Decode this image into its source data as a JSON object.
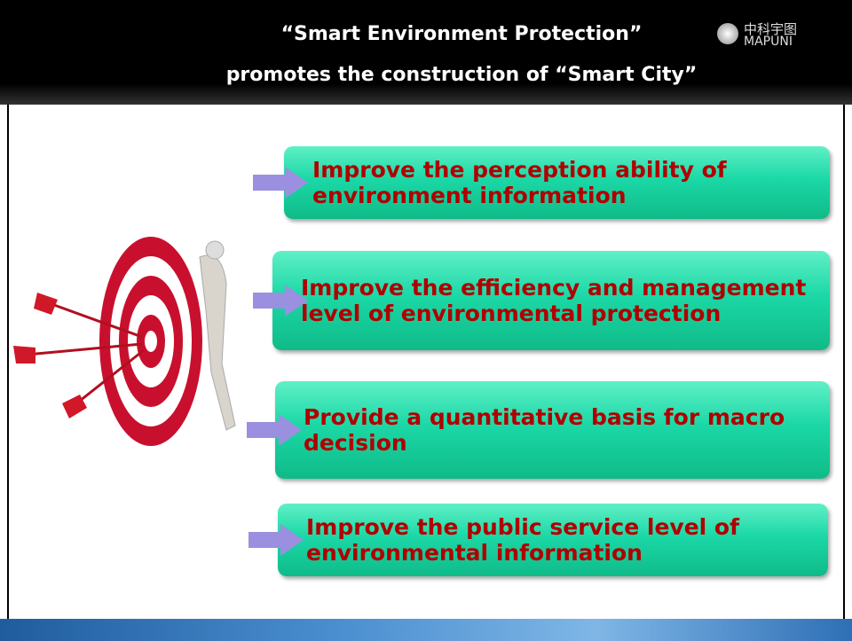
{
  "header": {
    "title_line1": "“Smart Environment Protection”",
    "title_line2": "promotes the construction of “Smart City”",
    "logo_cn": "中科宇图",
    "logo_en": "MAPUNI"
  },
  "items": [
    "Improve the perception ability of environment information",
    "Improve the efficiency and management level of environmental protection",
    "Provide a quantitative basis for macro decision",
    "Improve the public service level of environmental information"
  ]
}
